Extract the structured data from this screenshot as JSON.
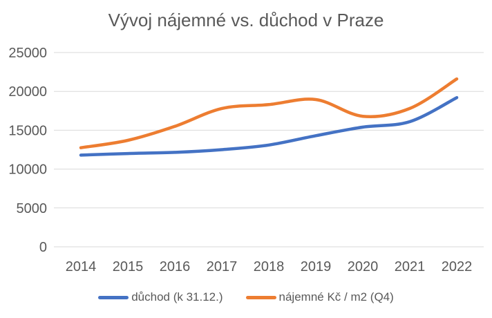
{
  "chart_data": {
    "type": "line",
    "title": "Vývoj nájemné vs. důchod v Praze",
    "categories": [
      "2014",
      "2015",
      "2016",
      "2017",
      "2018",
      "2019",
      "2020",
      "2021",
      "2022"
    ],
    "series": [
      {
        "name": "důchod (k 31.12.)",
        "color": "#4472C4",
        "values": [
          11800,
          12000,
          12150,
          12500,
          13100,
          14300,
          15400,
          16100,
          19200
        ]
      },
      {
        "name": "nájemné Kč / m2 (Q4)",
        "color": "#ED7D31",
        "values": [
          12750,
          13700,
          15500,
          17800,
          18300,
          18950,
          16800,
          17800,
          21600
        ]
      }
    ],
    "ylim": [
      0,
      25000
    ],
    "yticks": [
      0,
      5000,
      10000,
      15000,
      20000,
      25000
    ],
    "grid": true,
    "smooth": true,
    "legend_position": "bottom",
    "text_color": "#595959",
    "grid_color": "#D9D9D9",
    "background": "#FFFFFF"
  }
}
